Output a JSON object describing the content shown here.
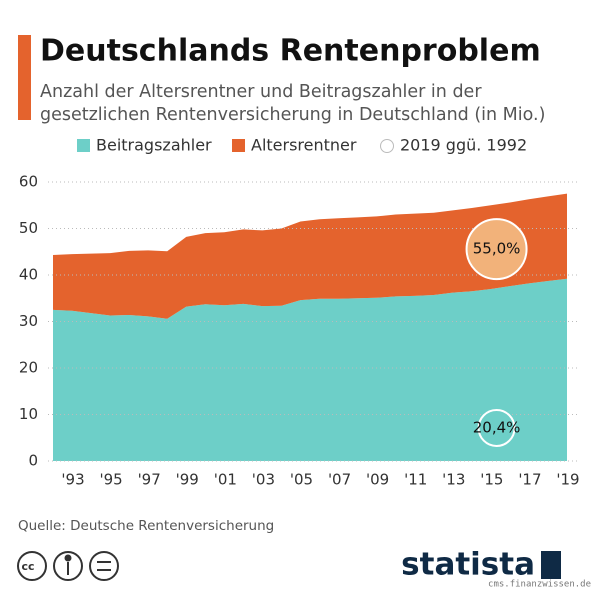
{
  "chart_data": {
    "type": "stacked_area",
    "title": "Deutschlands Rentenproblem",
    "subtitle": [
      "Anzahl der Altersrentner und Beitragszahler in der",
      "gesetzlichen Rentenversicherung in Deutschland (in Mio.)"
    ],
    "categories": [
      null,
      "'93",
      null,
      "'95",
      null,
      "'97",
      null,
      "'99",
      null,
      "'01",
      null,
      "'03",
      null,
      "'05",
      null,
      "'07",
      null,
      "'09",
      null,
      "'11",
      null,
      "'13",
      null,
      "'15",
      null,
      "'17",
      null,
      "'19"
    ],
    "series": [
      {
        "name": "Beitragszahler",
        "color": "#6dcfc8",
        "values": [
          32.5,
          32.3,
          31.8,
          31.3,
          31.4,
          31.1,
          30.6,
          33.2,
          33.7,
          33.5,
          33.8,
          33.3,
          33.4,
          34.6,
          34.9,
          34.9,
          35.0,
          35.1,
          35.4,
          35.5,
          35.7,
          36.2,
          36.5,
          37.0,
          37.6,
          38.2,
          38.7,
          39.2
        ]
      },
      {
        "name": "Altersrentner",
        "color": "#e4632d",
        "values": [
          11.8,
          12.2,
          12.8,
          13.4,
          13.8,
          14.2,
          14.5,
          15.0,
          15.3,
          15.7,
          16.0,
          16.3,
          16.6,
          16.9,
          17.1,
          17.3,
          17.4,
          17.5,
          17.6,
          17.7,
          17.7,
          17.7,
          17.9,
          18.0,
          18.0,
          18.1,
          18.2,
          18.3
        ]
      }
    ],
    "legend_extra": "2019 ggü. 1992",
    "annotations": [
      {
        "text": "55,0%",
        "series": 1,
        "color": "#f2b27a"
      },
      {
        "text": "20,4%",
        "series": 0,
        "color": "#6dcfc8"
      }
    ],
    "ylim": [
      0,
      60
    ],
    "yticks": [
      0,
      10,
      20,
      30,
      40,
      50,
      60
    ],
    "grid": true,
    "source": "Quelle: Deutsche Rentenversicherung",
    "logo": "statista",
    "watermark": "cms.finanzwissen.de"
  }
}
